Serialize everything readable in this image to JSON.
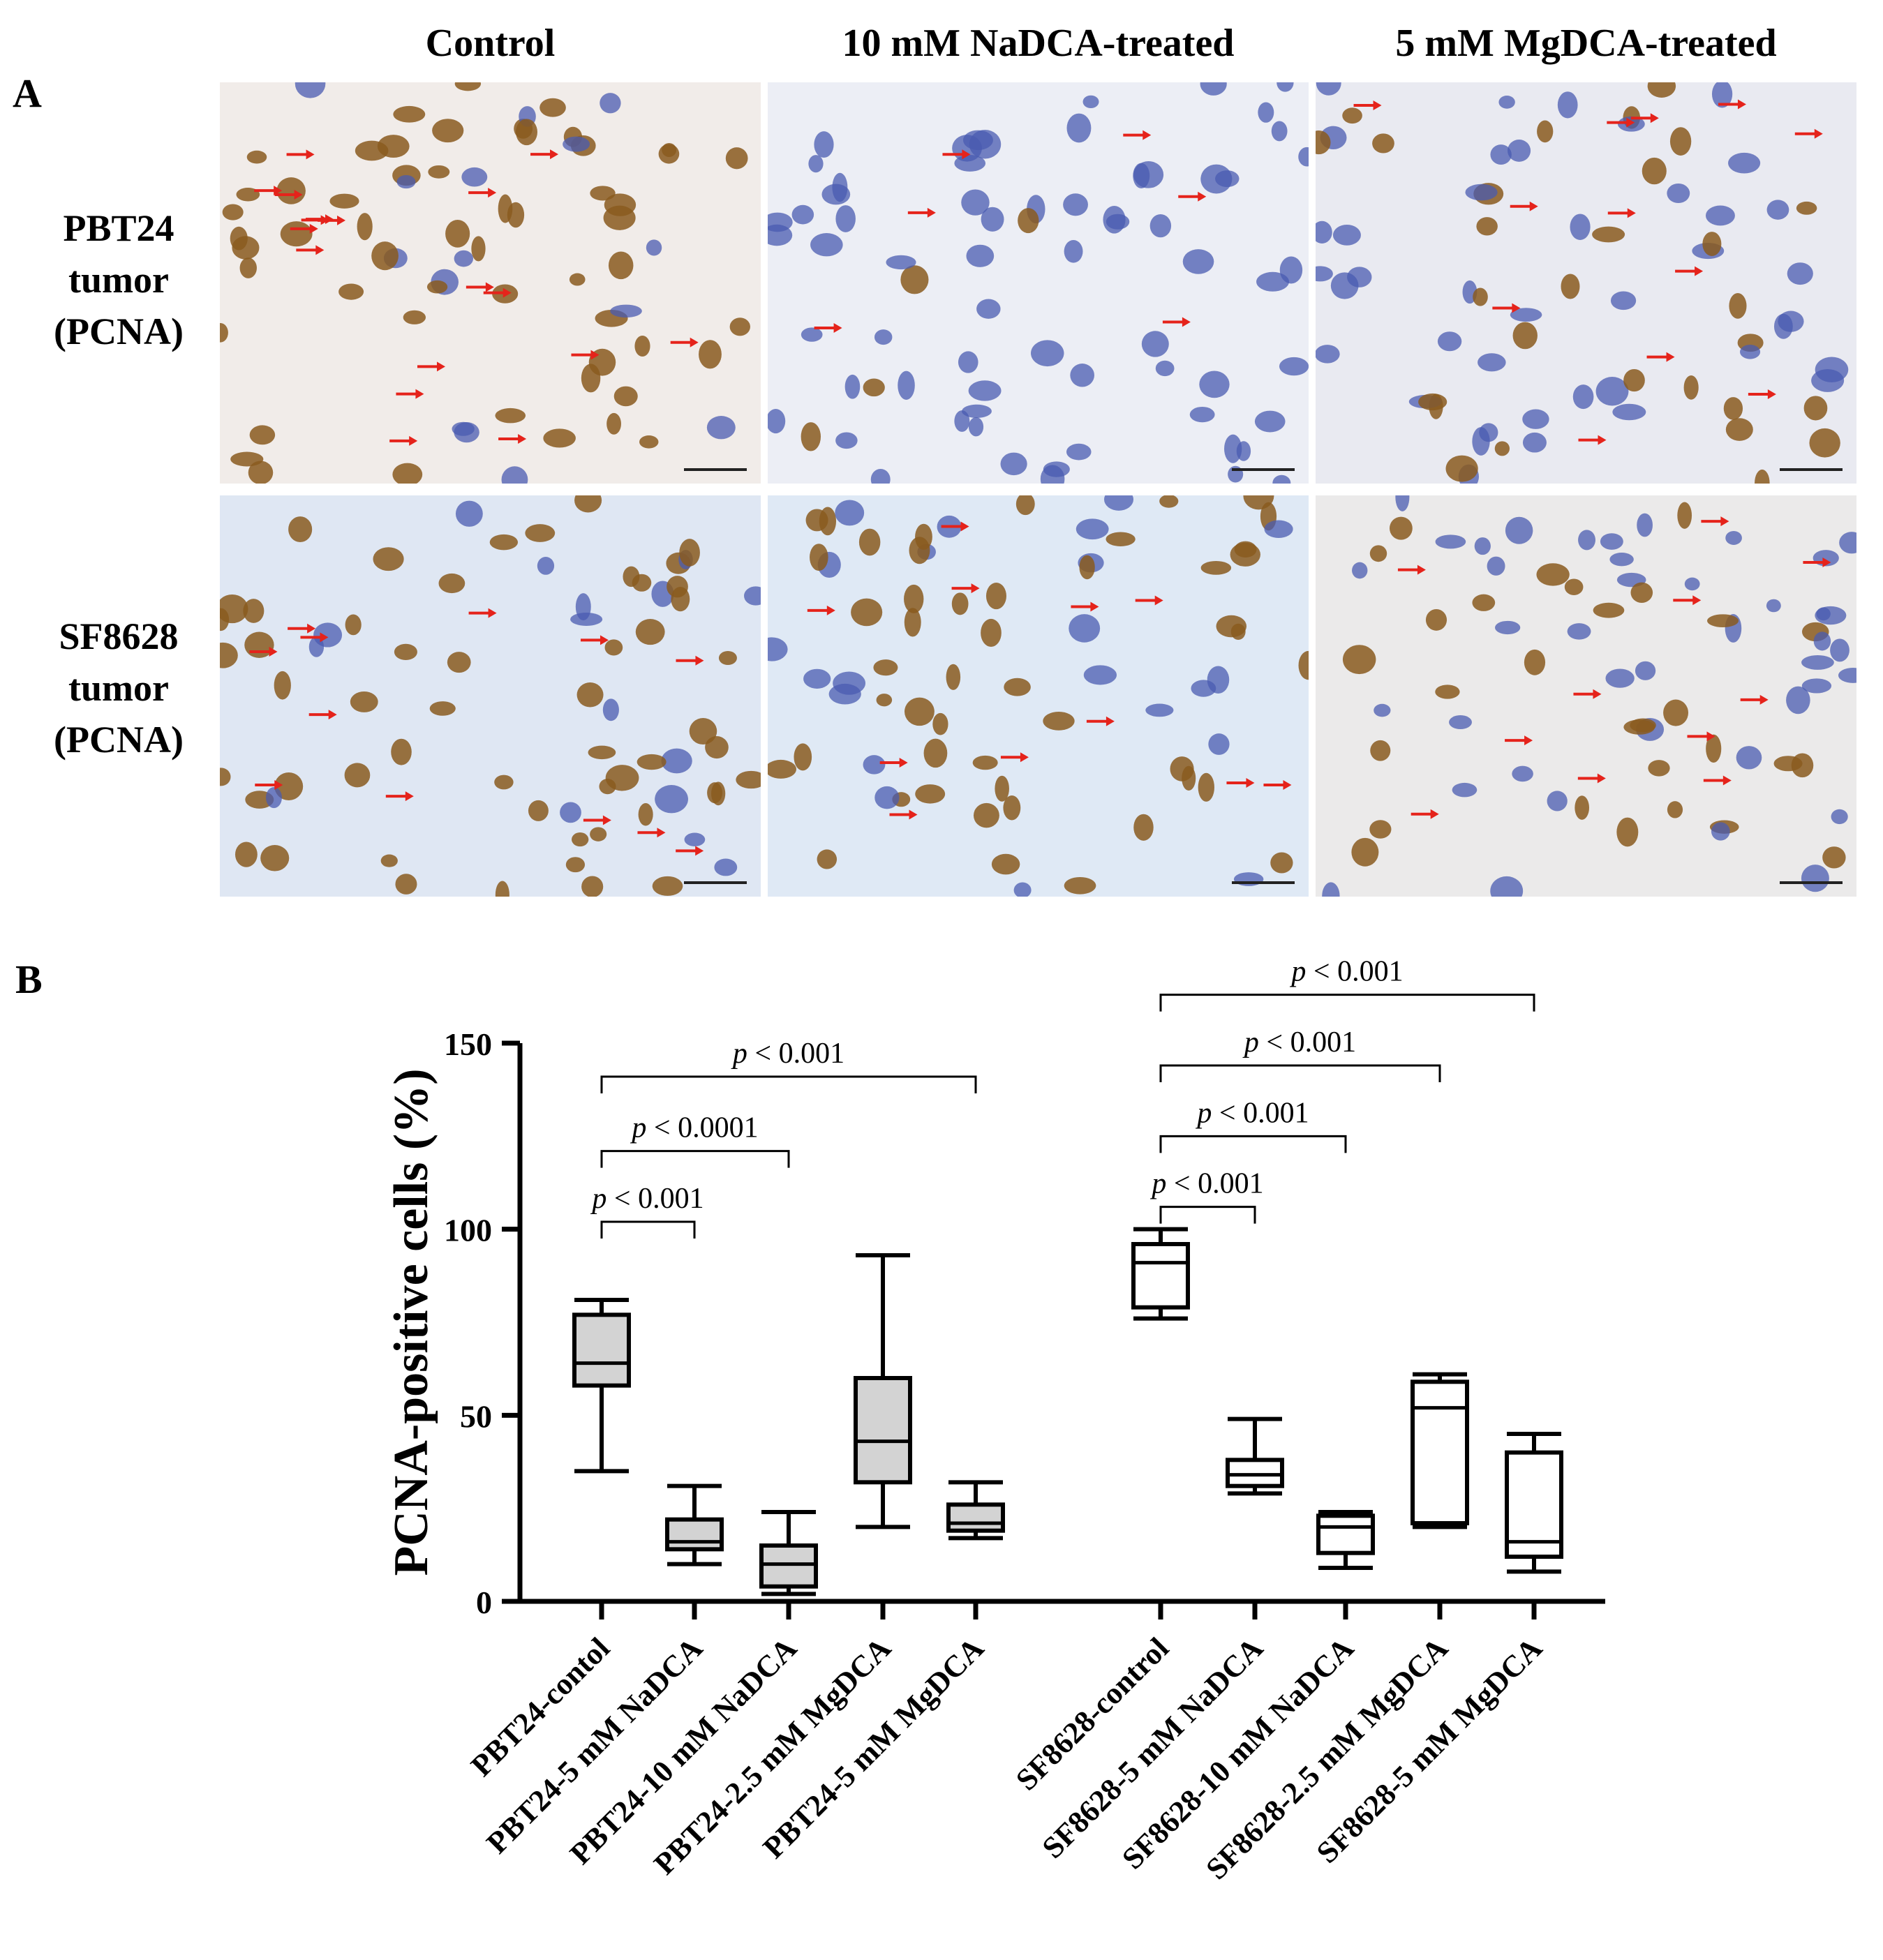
{
  "panel_a": {
    "letter": "A",
    "column_headers": [
      "Control",
      "10 mM NaDCA-treated",
      "5 mM MgDCA-treated"
    ],
    "row_headers": [
      [
        "PBT24",
        "tumor",
        "(PCNA)"
      ],
      [
        "SF8628",
        "tumor",
        "(PCNA)"
      ]
    ],
    "images": [
      {
        "name": "pbt24-control",
        "brown_fraction": 0.8,
        "bg": "#f1ece9",
        "arrows": 18
      },
      {
        "name": "pbt24-nadca",
        "brown_fraction": 0.12,
        "bg": "#eceef5",
        "arrows": 6
      },
      {
        "name": "pbt24-mgdca",
        "brown_fraction": 0.3,
        "bg": "#e9eaf1",
        "arrows": 12
      },
      {
        "name": "sf8628-control",
        "brown_fraction": 0.75,
        "bg": "#dfe7f3",
        "arrows": 12
      },
      {
        "name": "sf8628-nadca",
        "brown_fraction": 0.7,
        "bg": "#dfe9f5",
        "arrows": 11
      },
      {
        "name": "sf8628-mgdca",
        "brown_fraction": 0.4,
        "bg": "#ebeaea",
        "arrows": 11
      }
    ],
    "colors": {
      "brown": "#8a5a1e",
      "blue": "#4a5bb0",
      "arrow": "#e5231b"
    }
  },
  "panel_b": {
    "letter": "B"
  },
  "chart_data": {
    "type": "box",
    "ylabel": "PCNA-positive cells (%)",
    "ylim": [
      0,
      150
    ],
    "yticks": [
      0,
      50,
      100,
      150
    ],
    "categories": [
      "PBT24-contol",
      "PBT24-5 mM NaDCA",
      "PBT24-10 mM NaDCA",
      "PBT24-2.5 mM MgDCA",
      "PBT24-5 mM MgDCA",
      "SF8628-control",
      "SF8628-5 mM NaDCA",
      "SF8628-10 mM NaDCA",
      "SF8628-2.5 mM MgDCA",
      "SF8628-5 mM MgDCA"
    ],
    "boxes": [
      {
        "min": 35,
        "q1": 58,
        "median": 64,
        "q3": 77,
        "max": 81,
        "fill": "#d3d3d3"
      },
      {
        "min": 10,
        "q1": 14,
        "median": 16,
        "q3": 22,
        "max": 31,
        "fill": "#d3d3d3"
      },
      {
        "min": 2,
        "q1": 4,
        "median": 10,
        "q3": 15,
        "max": 24,
        "fill": "#d3d3d3"
      },
      {
        "min": 20,
        "q1": 32,
        "median": 43,
        "q3": 60,
        "max": 93,
        "fill": "#d3d3d3"
      },
      {
        "min": 17,
        "q1": 19,
        "median": 21,
        "q3": 26,
        "max": 32,
        "fill": "#d3d3d3"
      },
      {
        "min": 76,
        "q1": 79,
        "median": 91,
        "q3": 96,
        "max": 100,
        "fill": "#ffffff"
      },
      {
        "min": 29,
        "q1": 31,
        "median": 34,
        "q3": 38,
        "max": 49,
        "fill": "#ffffff"
      },
      {
        "min": 9,
        "q1": 13,
        "median": 20,
        "q3": 23,
        "max": 24,
        "fill": "#ffffff"
      },
      {
        "min": 20,
        "q1": 21,
        "median": 52,
        "q3": 59,
        "max": 61,
        "fill": "#ffffff"
      },
      {
        "min": 8,
        "q1": 12,
        "median": 16,
        "q3": 40,
        "max": 45,
        "fill": "#ffffff"
      }
    ],
    "comparisons": [
      {
        "from": 0,
        "to": 1,
        "level": 102,
        "p": "< 0.001"
      },
      {
        "from": 0,
        "to": 2,
        "level": 121,
        "p": "< 0.0001"
      },
      {
        "from": 0,
        "to": 4,
        "level": 141,
        "p": "< 0.001"
      },
      {
        "from": 5,
        "to": 6,
        "level": 106,
        "p": "< 0.001"
      },
      {
        "from": 5,
        "to": 7,
        "level": 125,
        "p": "< 0.001"
      },
      {
        "from": 5,
        "to": 8,
        "level": 144,
        "p": "< 0.001"
      },
      {
        "from": 5,
        "to": 9,
        "level": 163,
        "p": "< 0.001"
      }
    ],
    "p_symbol": "p"
  }
}
